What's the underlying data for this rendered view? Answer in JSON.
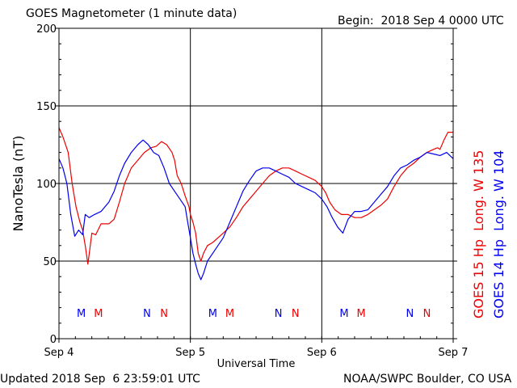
{
  "header": {
    "title": "GOES Magnetometer (1 minute data)",
    "begin": "Begin:  2018 Sep 4 0000 UTC"
  },
  "footer": {
    "updated": "Updated 2018 Sep  6 23:59:01 UTC",
    "credit": "NOAA/SWPC Boulder, CO USA"
  },
  "colors": {
    "goes15": "#ee0000",
    "goes14": "#0000ee",
    "axis": "#000000"
  },
  "chart_data": {
    "type": "line",
    "title": "GOES Magnetometer (1 minute data)",
    "xlabel": "Universal Time",
    "ylabel": "NanoTesla (nT)",
    "x_unit": "days since 2018 Sep 4 0000 UTC",
    "xlim": [
      0,
      3
    ],
    "ylim": [
      0,
      200
    ],
    "yticks": [
      0,
      50,
      100,
      150,
      200
    ],
    "xticks": [
      {
        "x": 0,
        "label": "Sep 4"
      },
      {
        "x": 1,
        "label": "Sep 5"
      },
      {
        "x": 2,
        "label": "Sep 6"
      },
      {
        "x": 3,
        "label": "Sep 7"
      }
    ],
    "grid": true,
    "legend_position": "right (vertical)",
    "markers": [
      {
        "label": "M",
        "x": 0.17,
        "series": "GOES 14 Hp  Long. W 104"
      },
      {
        "label": "M",
        "x": 0.3,
        "series": "GOES 15 Hp  Long. W 135"
      },
      {
        "label": "N",
        "x": 0.67,
        "series": "GOES 14 Hp  Long. W 104"
      },
      {
        "label": "N",
        "x": 0.8,
        "series": "GOES 15 Hp  Long. W 135"
      },
      {
        "label": "M",
        "x": 1.17,
        "series": "GOES 14 Hp  Long. W 104"
      },
      {
        "label": "M",
        "x": 1.3,
        "series": "GOES 15 Hp  Long. W 135"
      },
      {
        "label": "N",
        "x": 1.67,
        "series": "GOES 14 Hp  Long. W 104"
      },
      {
        "label": "N",
        "x": 1.8,
        "series": "GOES 15 Hp  Long. W 135"
      },
      {
        "label": "M",
        "x": 2.17,
        "series": "GOES 14 Hp  Long. W 104"
      },
      {
        "label": "M",
        "x": 2.3,
        "series": "GOES 15 Hp  Long. W 135"
      },
      {
        "label": "N",
        "x": 2.67,
        "series": "GOES 14 Hp  Long. W 104"
      },
      {
        "label": "N",
        "x": 2.8,
        "series": "GOES 15 Hp  Long. W 135"
      }
    ],
    "series": [
      {
        "name": "GOES 15 Hp  Long. W 135",
        "color": "#ee0000",
        "x": [
          0,
          0.03,
          0.07,
          0.1,
          0.13,
          0.16,
          0.18,
          0.2,
          0.22,
          0.25,
          0.28,
          0.32,
          0.38,
          0.42,
          0.46,
          0.5,
          0.55,
          0.6,
          0.65,
          0.7,
          0.74,
          0.78,
          0.82,
          0.86,
          0.88,
          0.9,
          0.93,
          0.96,
          0.99,
          1.0,
          1.02,
          1.04,
          1.06,
          1.08,
          1.1,
          1.13,
          1.17,
          1.21,
          1.25,
          1.3,
          1.35,
          1.4,
          1.45,
          1.5,
          1.55,
          1.6,
          1.65,
          1.7,
          1.75,
          1.8,
          1.85,
          1.9,
          1.95,
          2.0,
          2.03,
          2.06,
          2.1,
          2.15,
          2.2,
          2.25,
          2.3,
          2.35,
          2.4,
          2.45,
          2.5,
          2.55,
          2.6,
          2.65,
          2.7,
          2.75,
          2.8,
          2.85,
          2.88,
          2.9,
          2.93,
          2.96,
          3.0
        ],
        "y": [
          136,
          130,
          120,
          100,
          85,
          75,
          70,
          60,
          48,
          68,
          67,
          74,
          74,
          77,
          88,
          100,
          110,
          115,
          120,
          123,
          124,
          127,
          125,
          120,
          115,
          105,
          100,
          92,
          85,
          80,
          75,
          68,
          55,
          50,
          55,
          60,
          62,
          65,
          68,
          72,
          78,
          85,
          90,
          95,
          100,
          105,
          108,
          110,
          110,
          108,
          106,
          104,
          102,
          98,
          94,
          88,
          83,
          80,
          80,
          78,
          78,
          80,
          83,
          86,
          90,
          98,
          105,
          110,
          113,
          117,
          120,
          122,
          123,
          122,
          128,
          133,
          133
        ]
      },
      {
        "name": "GOES 14 Hp  Long. W 104",
        "color": "#0000ee",
        "x": [
          0,
          0.03,
          0.06,
          0.09,
          0.12,
          0.15,
          0.18,
          0.2,
          0.23,
          0.27,
          0.32,
          0.38,
          0.42,
          0.46,
          0.5,
          0.55,
          0.6,
          0.64,
          0.68,
          0.72,
          0.76,
          0.8,
          0.84,
          0.88,
          0.92,
          0.96,
          0.98,
          1.0,
          1.02,
          1.04,
          1.06,
          1.08,
          1.1,
          1.13,
          1.17,
          1.21,
          1.25,
          1.3,
          1.35,
          1.4,
          1.45,
          1.5,
          1.55,
          1.6,
          1.65,
          1.7,
          1.75,
          1.8,
          1.85,
          1.9,
          1.95,
          2.0,
          2.04,
          2.08,
          2.12,
          2.16,
          2.2,
          2.25,
          2.3,
          2.35,
          2.4,
          2.45,
          2.5,
          2.55,
          2.6,
          2.65,
          2.7,
          2.75,
          2.8,
          2.85,
          2.9,
          2.95,
          3.0
        ],
        "y": [
          116,
          110,
          100,
          80,
          66,
          70,
          67,
          80,
          78,
          80,
          82,
          88,
          95,
          105,
          113,
          120,
          125,
          128,
          125,
          120,
          118,
          110,
          100,
          95,
          90,
          85,
          75,
          65,
          55,
          48,
          42,
          38,
          42,
          50,
          55,
          60,
          65,
          75,
          85,
          95,
          102,
          108,
          110,
          110,
          108,
          106,
          104,
          100,
          98,
          96,
          94,
          90,
          85,
          78,
          72,
          68,
          77,
          82,
          82,
          83,
          88,
          93,
          98,
          105,
          110,
          112,
          115,
          117,
          120,
          119,
          118,
          120,
          116
        ]
      }
    ]
  }
}
